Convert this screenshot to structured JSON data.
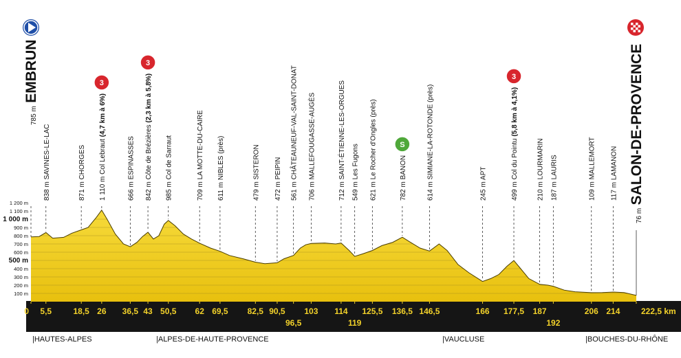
{
  "chart_data": {
    "type": "profile",
    "color": "#f2cf1f",
    "xlim": [
      0,
      222.5
    ],
    "ylim": [
      0,
      1200
    ],
    "grid": true,
    "start": {
      "elevation": {
        "value": 785,
        "label": "785 m"
      },
      "name": "EMBRUN"
    },
    "finish": {
      "elevation": {
        "value": 76,
        "label": "76 m"
      },
      "name": "SALON-DE-PROVENCE"
    },
    "yticks": [
      {
        "value": 100,
        "label": "100 m"
      },
      {
        "value": 200,
        "label": "200 m"
      },
      {
        "value": 300,
        "label": "300 m"
      },
      {
        "value": 400,
        "label": "400 m"
      },
      {
        "value": 500,
        "label": "500 m"
      },
      {
        "value": 600,
        "label": "600 m"
      },
      {
        "value": 700,
        "label": "700 m"
      },
      {
        "value": 800,
        "label": "800 m"
      },
      {
        "value": 900,
        "label": "900 m"
      },
      {
        "value": 1000,
        "label": "1 000 m"
      },
      {
        "value": 1100,
        "label": "1 100 m"
      },
      {
        "value": 1200,
        "label": "1 200 m"
      }
    ],
    "xticks": [
      0,
      {
        "value": 5.5,
        "label": "5,5"
      },
      {
        "value": 18.5,
        "label": "18,5"
      },
      26,
      {
        "value": 36.5,
        "label": "36,5"
      },
      43,
      {
        "value": 50.5,
        "label": "50,5"
      },
      62,
      {
        "value": 69.5,
        "label": "69,5"
      },
      {
        "value": 82.5,
        "label": "82,5"
      },
      {
        "value": 90.5,
        "label": "90,5"
      },
      {
        "value": 96.5,
        "label": "96,5"
      },
      103,
      114,
      119,
      {
        "value": 125.5,
        "label": "125,5"
      },
      {
        "value": 136.5,
        "label": "136,5"
      },
      {
        "value": 146.5,
        "label": "146,5"
      },
      166,
      {
        "value": 177.5,
        "label": "177,5"
      },
      187,
      192,
      206,
      214,
      {
        "value": 222.5,
        "label": "222,5 km"
      }
    ],
    "profile": {
      "km": [
        0,
        3,
        5.5,
        8,
        12,
        15,
        18.5,
        21,
        24,
        26,
        28,
        31,
        34,
        36.5,
        39,
        41,
        43,
        45,
        47,
        49,
        50.5,
        53,
        56,
        59,
        62,
        66,
        69.5,
        73,
        78,
        82.5,
        86,
        90.5,
        93,
        96.5,
        99,
        101,
        103,
        108,
        112,
        114,
        117,
        119,
        122,
        125.5,
        129,
        133,
        136.5,
        139,
        143,
        146.5,
        150,
        153,
        157,
        161,
        166,
        169,
        172,
        175,
        177.5,
        180,
        183,
        187,
        190,
        192,
        196,
        200,
        206,
        210,
        214,
        218,
        222.5
      ],
      "elevation": [
        785,
        790,
        838,
        770,
        780,
        830,
        871,
        900,
        1020,
        1110,
        1000,
        820,
        700,
        666,
        720,
        790,
        842,
        760,
        800,
        940,
        985,
        920,
        820,
        760,
        709,
        650,
        611,
        560,
        520,
        479,
        460,
        472,
        520,
        561,
        650,
        690,
        706,
        712,
        700,
        712,
        620,
        549,
        580,
        621,
        680,
        720,
        782,
        730,
        650,
        614,
        700,
        620,
        450,
        350,
        245,
        280,
        330,
        430,
        499,
        400,
        280,
        210,
        200,
        187,
        140,
        120,
        109,
        110,
        117,
        110,
        76
      ]
    },
    "waypoints": [
      {
        "km": 5.5,
        "elevation": {
          "value": 838,
          "label": "838 m"
        },
        "name": "SAVINES-LE-LAC"
      },
      {
        "km": 18.5,
        "elevation": {
          "value": 871,
          "label": "871 m"
        },
        "name": "CHORGES"
      },
      {
        "km": 26,
        "elevation": {
          "value": 1110,
          "label": "1 110 m"
        },
        "name": "Col Lebraut",
        "detail": "(4,7 km à 6%)",
        "badge": {
          "text": "3",
          "color": "#d8262d"
        }
      },
      {
        "km": 36.5,
        "elevation": {
          "value": 666,
          "label": "666 m"
        },
        "name": "ESPINASSES"
      },
      {
        "km": 43,
        "elevation": {
          "value": 842,
          "label": "842 m"
        },
        "name": "Côte de Brézières",
        "detail": "(2,3 km à 5,8%)",
        "badge": {
          "text": "3",
          "color": "#d8262d"
        }
      },
      {
        "km": 50.5,
        "elevation": {
          "value": 985,
          "label": "985 m"
        },
        "name": "Col de Sarraut"
      },
      {
        "km": 62,
        "elevation": {
          "value": 709,
          "label": "709 m"
        },
        "name": "LA MOTTE-DU-CAIRE"
      },
      {
        "km": 69.5,
        "elevation": {
          "value": 611,
          "label": "611 m"
        },
        "name": "NIBLES (près)"
      },
      {
        "km": 82.5,
        "elevation": {
          "value": 479,
          "label": "479 m"
        },
        "name": "SISTERON"
      },
      {
        "km": 90.5,
        "elevation": {
          "value": 472,
          "label": "472 m"
        },
        "name": "PEIPIN"
      },
      {
        "km": 96.5,
        "elevation": {
          "value": 561,
          "label": "561 m"
        },
        "name": "CHÂTEAUNEUF-VAL-SAINT-DONAT"
      },
      {
        "km": 103,
        "elevation": {
          "value": 706,
          "label": "706 m"
        },
        "name": "MALLEFOUGASSE-AUGÈS"
      },
      {
        "km": 114,
        "elevation": {
          "value": 712,
          "label": "712 m"
        },
        "name": "SAINT-ÉTIENNE-LES-ORGUES"
      },
      {
        "km": 119,
        "elevation": {
          "value": 549,
          "label": "549 m"
        },
        "name": "Les Fugons"
      },
      {
        "km": 125.5,
        "elevation": {
          "value": 621,
          "label": "621 m"
        },
        "name": "Le Rocher d'Ongles (près)"
      },
      {
        "km": 136.5,
        "elevation": {
          "value": 782,
          "label": "782 m"
        },
        "name": "BANON",
        "badge": {
          "text": "S",
          "color": "#4fa83a"
        }
      },
      {
        "km": 146.5,
        "elevation": {
          "value": 614,
          "label": "614 m"
        },
        "name": "SIMIANE-LA-ROTONDE (près)"
      },
      {
        "km": 166,
        "elevation": {
          "value": 245,
          "label": "245 m"
        },
        "name": "APT"
      },
      {
        "km": 177.5,
        "elevation": {
          "value": 499,
          "label": "499 m"
        },
        "name": "Col du Pointu",
        "detail": "(5,8 km à 4,1%)",
        "badge": {
          "text": "3",
          "color": "#d8262d"
        }
      },
      {
        "km": 187,
        "elevation": {
          "value": 210,
          "label": "210 m"
        },
        "name": "LOURMARIN"
      },
      {
        "km": 192,
        "elevation": {
          "value": 187,
          "label": "187 m"
        },
        "name": "LAURIS"
      },
      {
        "km": 206,
        "elevation": {
          "value": 109,
          "label": "109 m"
        },
        "name": "MALLEMORT"
      },
      {
        "km": 214,
        "elevation": {
          "value": 117,
          "label": "117 m"
        },
        "name": "LAMANON"
      }
    ],
    "departments": [
      "|HAUTES-ALPES",
      "|ALPES-DE-HAUTE-PROVENCE",
      "|VAUCLUSE",
      "|BOUCHES-DU-RHÔNE"
    ]
  }
}
